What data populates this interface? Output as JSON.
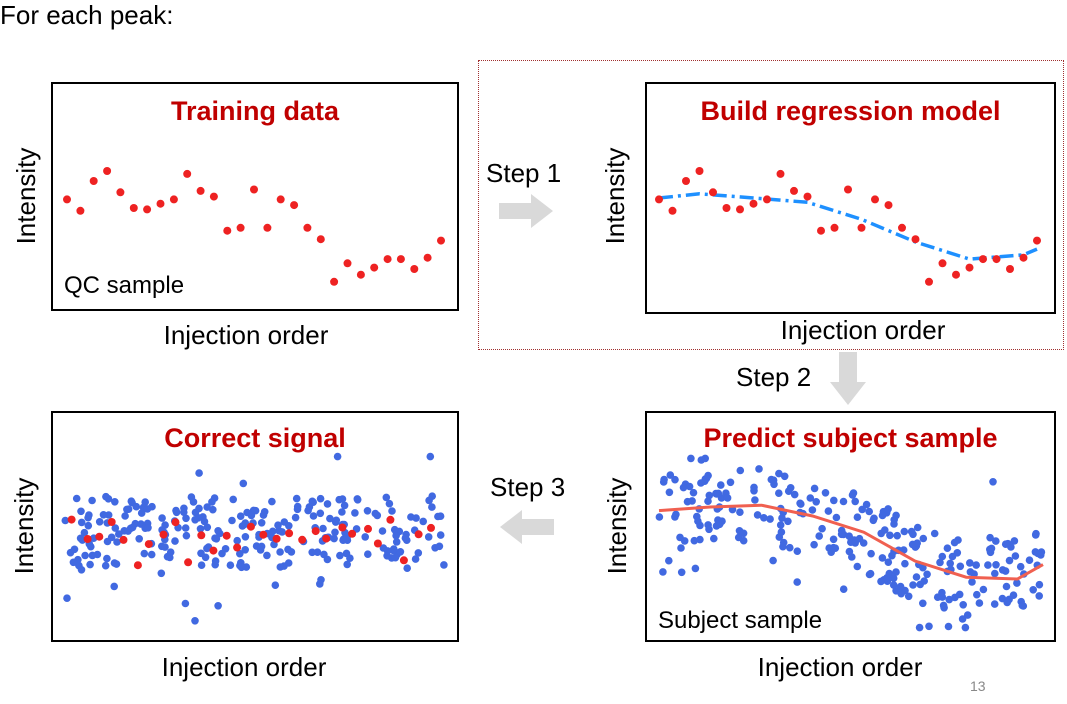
{
  "intro": "For each peak:",
  "steps": {
    "step1": "Step 1",
    "step2": "Step 2",
    "step3": "Step 3"
  },
  "panels": {
    "training": {
      "title": "Training data",
      "ylabel": "Intensity",
      "xlabel": "Injection order",
      "inner_label": "QC sample"
    },
    "regression": {
      "title": "Build regression model",
      "ylabel": "Intensity",
      "xlabel": "Injection order"
    },
    "predict": {
      "title": "Predict subject sample",
      "ylabel": "Intensity",
      "xlabel": "Injection order",
      "inner_label": "Subject sample"
    },
    "correct": {
      "title": "Correct signal",
      "ylabel": "Intensity",
      "xlabel": "Injection order"
    }
  },
  "colors": {
    "title_red": "#c00000",
    "qc_point": "#ee2222",
    "subject_point": "#4169e1",
    "regression_line": "#1e90ff",
    "fit_curve": "#f06050",
    "arrow": "#d9d9d9",
    "dashed_frame": "#a03030"
  },
  "chart_data": [
    {
      "name": "training",
      "type": "scatter",
      "series": [
        {
          "x": [
            1,
            2,
            3,
            4,
            5,
            6,
            7,
            8,
            9,
            10,
            11,
            12,
            13,
            14,
            15,
            16,
            17,
            18,
            19,
            20,
            21,
            22,
            23,
            24,
            25,
            26,
            27,
            28,
            29
          ],
          "y": [
            6.8,
            6.0,
            8.1,
            8.8,
            7.3,
            6.2,
            6.1,
            6.5,
            6.8,
            8.6,
            7.4,
            7.0,
            4.6,
            4.8,
            7.5,
            4.8,
            6.8,
            6.4,
            4.8,
            4.0,
            1.0,
            2.3,
            1.5,
            2.0,
            2.6,
            2.6,
            1.9,
            2.7,
            3.9
          ]
        }
      ]
    },
    {
      "name": "regression",
      "type": "scatter",
      "series": [
        {
          "x": [
            1,
            2,
            3,
            4,
            5,
            6,
            7,
            8,
            9,
            10,
            11,
            12,
            13,
            14,
            15,
            16,
            17,
            18,
            19,
            20,
            21,
            22,
            23,
            24,
            25,
            26,
            27,
            28,
            29
          ],
          "y": [
            6.8,
            6.0,
            8.1,
            8.8,
            7.3,
            6.2,
            6.1,
            6.5,
            6.8,
            8.6,
            7.4,
            7.0,
            4.6,
            4.8,
            7.5,
            4.8,
            6.8,
            6.4,
            4.8,
            4.0,
            1.0,
            2.3,
            1.5,
            2.0,
            2.6,
            2.6,
            1.9,
            2.7,
            3.9
          ]
        }
      ],
      "model_fit": {
        "x": [
          1,
          4,
          8,
          12,
          16,
          20,
          24,
          28,
          29
        ],
        "y": [
          6.9,
          7.2,
          6.9,
          6.6,
          5.4,
          3.8,
          2.6,
          2.9,
          3.3
        ]
      }
    },
    {
      "name": "predict",
      "type": "scatter",
      "fit_curve": {
        "x": [
          0,
          4,
          8,
          12,
          16,
          20,
          24,
          28,
          30
        ],
        "y": [
          6.8,
          7.0,
          7.1,
          6.5,
          5.6,
          4.0,
          3.1,
          3.0,
          3.8
        ]
      }
    },
    {
      "name": "correct",
      "type": "scatter"
    }
  ]
}
